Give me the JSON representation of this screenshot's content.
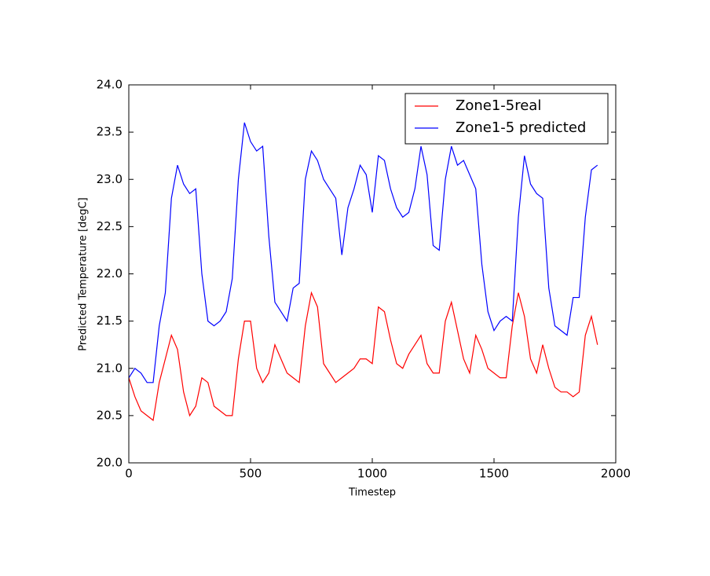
{
  "chart_data": {
    "type": "line",
    "x_label": "Timestep",
    "y_label": "Predicted Temperature [degC]",
    "x": [
      0,
      25,
      50,
      75,
      100,
      125,
      150,
      175,
      200,
      225,
      250,
      275,
      300,
      325,
      350,
      375,
      400,
      425,
      450,
      475,
      500,
      525,
      550,
      575,
      600,
      625,
      650,
      675,
      700,
      725,
      750,
      775,
      800,
      825,
      850,
      875,
      900,
      925,
      950,
      975,
      1000,
      1025,
      1050,
      1075,
      1100,
      1125,
      1150,
      1175,
      1200,
      1225,
      1250,
      1275,
      1300,
      1325,
      1350,
      1375,
      1400,
      1425,
      1450,
      1475,
      1500,
      1525,
      1550,
      1575,
      1600,
      1625,
      1650,
      1675,
      1700,
      1725,
      1750,
      1775,
      1800,
      1825,
      1850,
      1875,
      1900,
      1925
    ],
    "series": [
      {
        "name": "Zone1-5real",
        "color": "#ff0000",
        "values": [
          20.9,
          20.7,
          20.55,
          20.5,
          20.45,
          20.85,
          21.1,
          21.35,
          21.2,
          20.75,
          20.5,
          20.6,
          20.9,
          20.85,
          20.6,
          20.55,
          20.5,
          20.5,
          21.1,
          21.5,
          21.5,
          21.0,
          20.85,
          20.95,
          21.25,
          21.1,
          20.95,
          20.9,
          20.85,
          21.45,
          21.8,
          21.65,
          21.05,
          20.95,
          20.85,
          20.9,
          20.95,
          21.0,
          21.1,
          21.1,
          21.05,
          21.65,
          21.6,
          21.3,
          21.05,
          21.0,
          21.15,
          21.25,
          21.35,
          21.05,
          20.95,
          20.95,
          21.5,
          21.7,
          21.4,
          21.1,
          20.95,
          21.35,
          21.2,
          21.0,
          20.95,
          20.9,
          20.9,
          21.45,
          21.8,
          21.55,
          21.1,
          20.95,
          21.25,
          21.0,
          20.8,
          20.75,
          20.75,
          20.7,
          20.75,
          21.35,
          21.55,
          21.25
        ]
      },
      {
        "name": "Zone1-5 predicted",
        "color": "#0000ff",
        "values": [
          20.9,
          21.0,
          20.95,
          20.85,
          20.85,
          21.45,
          21.8,
          22.8,
          23.15,
          22.95,
          22.85,
          22.9,
          22.0,
          21.5,
          21.45,
          21.5,
          21.6,
          21.95,
          23.0,
          23.6,
          23.4,
          23.3,
          23.35,
          22.4,
          21.7,
          21.6,
          21.5,
          21.85,
          21.9,
          23.0,
          23.3,
          23.2,
          23.0,
          22.9,
          22.8,
          22.2,
          22.7,
          22.9,
          23.15,
          23.05,
          22.65,
          23.25,
          23.2,
          22.9,
          22.7,
          22.6,
          22.65,
          22.9,
          23.35,
          23.05,
          22.3,
          22.25,
          23.0,
          23.35,
          23.15,
          23.2,
          23.05,
          22.9,
          22.1,
          21.6,
          21.4,
          21.5,
          21.55,
          21.5,
          22.6,
          23.25,
          22.95,
          22.85,
          22.8,
          21.85,
          21.45,
          21.4,
          21.35,
          21.75,
          21.75,
          22.6,
          23.1,
          23.15
        ]
      }
    ],
    "xlim": [
      0,
      2000
    ],
    "xticks": [
      0,
      500,
      1000,
      1500,
      2000
    ],
    "ylim": [
      20,
      24
    ],
    "yticks": [
      {
        "value": 20,
        "label": "20.0"
      },
      {
        "value": 20.5,
        "label": "20.5"
      },
      {
        "value": 21,
        "label": "21.0"
      },
      {
        "value": 21.5,
        "label": "21.5"
      },
      {
        "value": 22,
        "label": "22.0"
      },
      {
        "value": 22.5,
        "label": "22.5"
      },
      {
        "value": 23,
        "label": "23.0"
      },
      {
        "value": 23.5,
        "label": "23.5"
      },
      {
        "value": 24,
        "label": "24.0"
      }
    ],
    "legend": "upper right"
  }
}
